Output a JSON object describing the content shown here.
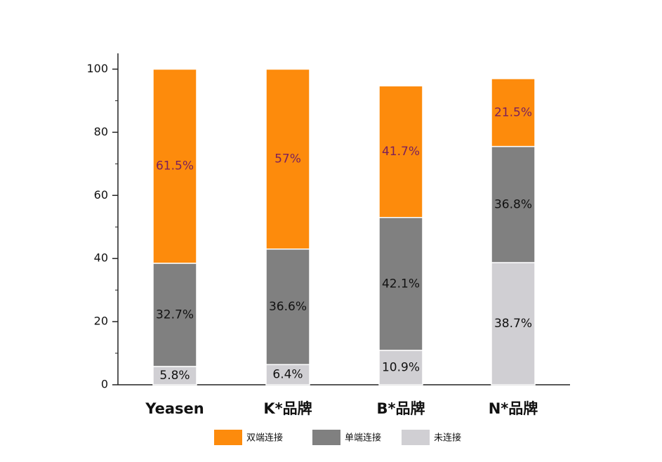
{
  "chart_data": {
    "type": "stacked_bar",
    "categories": [
      "Yeasen",
      "K*品牌",
      "B*品牌",
      "N*品牌"
    ],
    "series": [
      {
        "name": "双端连接",
        "color": "#fd8b0c",
        "label_color": "#7a1f5c",
        "values": [
          61.5,
          57,
          41.7,
          21.5
        ],
        "value_labels": [
          "61.5%",
          "57%",
          "41.7%",
          "21.5%"
        ]
      },
      {
        "name": "单端连接",
        "color": "#808080",
        "label_color": "#111111",
        "values": [
          32.7,
          36.6,
          42.1,
          36.8
        ],
        "value_labels": [
          "32.7%",
          "36.6%",
          "42.1%",
          "36.8%"
        ]
      },
      {
        "name": "未连接",
        "color": "#d0cfd3",
        "label_color": "#111111",
        "values": [
          5.8,
          6.4,
          10.9,
          38.7
        ],
        "value_labels": [
          "5.8%",
          "6.4%",
          "10.9%",
          "38.7%"
        ]
      }
    ],
    "ylim": [
      0,
      105
    ],
    "yticks": [
      0,
      20,
      40,
      60,
      80,
      100
    ],
    "grid": false
  }
}
